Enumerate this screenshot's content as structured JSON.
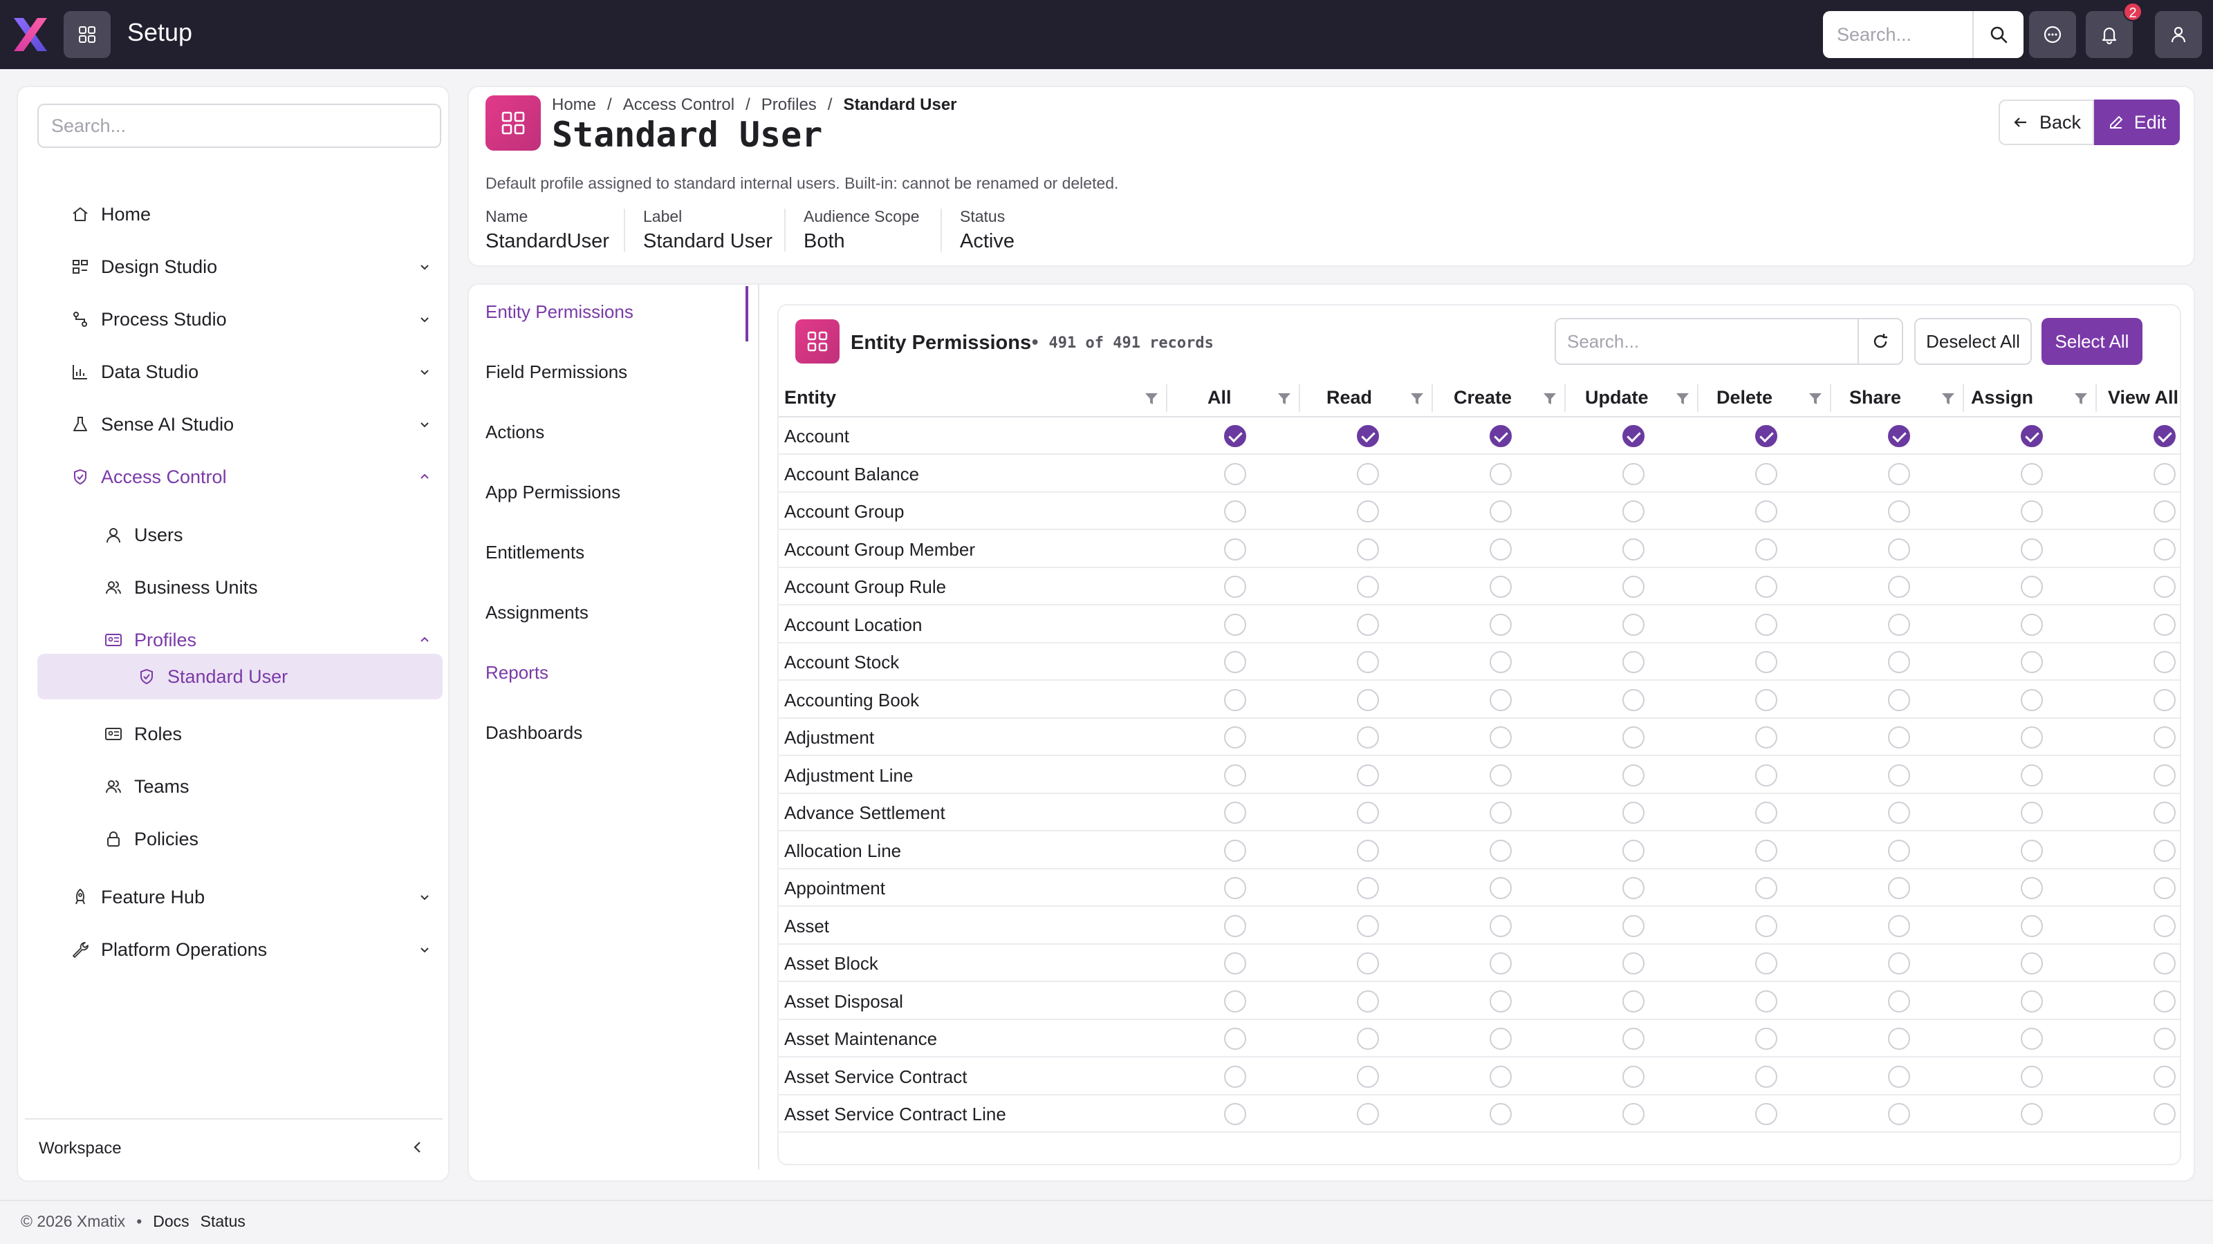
{
  "app": {
    "title": "Setup",
    "search_placeholder": "Search...",
    "notification_count": "2"
  },
  "sidebar": {
    "search_placeholder": "Search...",
    "items": [
      {
        "label": "Home",
        "icon": "home-icon"
      },
      {
        "label": "Design Studio",
        "icon": "design-icon"
      },
      {
        "label": "Process Studio",
        "icon": "process-icon"
      },
      {
        "label": "Data Studio",
        "icon": "chart-icon"
      },
      {
        "label": "Sense AI Studio",
        "icon": "flask-icon"
      },
      {
        "label": "Access Control",
        "icon": "shield-icon"
      },
      {
        "label": "Users",
        "icon": "user-icon"
      },
      {
        "label": "Business Units",
        "icon": "users-icon"
      },
      {
        "label": "Profiles",
        "icon": "id-card-icon"
      },
      {
        "label": "Standard User",
        "icon": "shield-check-icon"
      },
      {
        "label": "Roles",
        "icon": "id-card-icon"
      },
      {
        "label": "Teams",
        "icon": "users-icon"
      },
      {
        "label": "Policies",
        "icon": "lock-icon"
      },
      {
        "label": "Feature Hub",
        "icon": "rocket-icon"
      },
      {
        "label": "Platform Operations",
        "icon": "wrench-icon"
      }
    ],
    "workspace_label": "Workspace"
  },
  "header": {
    "breadcrumb": [
      "Home",
      "Access Control",
      "Profiles",
      "Standard User"
    ],
    "title": "Standard User",
    "back_label": "Back",
    "edit_label": "Edit",
    "description": "Default profile assigned to standard internal users. Built-in: cannot be renamed or deleted.",
    "meta": [
      {
        "label": "Name",
        "value": "StandardUser"
      },
      {
        "label": "Label",
        "value": "Standard User"
      },
      {
        "label": "Audience Scope",
        "value": "Both"
      },
      {
        "label": "Status",
        "value": "Active"
      }
    ]
  },
  "subnav": {
    "items": [
      "Entity Permissions",
      "Field Permissions",
      "Actions",
      "App Permissions",
      "Entitlements",
      "Assignments",
      "Reports",
      "Dashboards"
    ],
    "active": "Entity Permissions"
  },
  "table": {
    "title": "Entity Permissions",
    "count_text": "• 491 of 491 records",
    "search_placeholder": "Search...",
    "deselect_label": "Deselect All",
    "select_label": "Select All",
    "columns": [
      "Entity",
      "All",
      "Read",
      "Create",
      "Update",
      "Delete",
      "Share",
      "Assign",
      "View All"
    ],
    "rows": [
      {
        "entity": "Account",
        "checked": [
          true,
          true,
          true,
          true,
          true,
          true,
          true,
          true
        ]
      },
      {
        "entity": "Account Balance",
        "checked": [
          false,
          false,
          false,
          false,
          false,
          false,
          false,
          false
        ]
      },
      {
        "entity": "Account Group",
        "checked": [
          false,
          false,
          false,
          false,
          false,
          false,
          false,
          false
        ]
      },
      {
        "entity": "Account Group Member",
        "checked": [
          false,
          false,
          false,
          false,
          false,
          false,
          false,
          false
        ]
      },
      {
        "entity": "Account Group Rule",
        "checked": [
          false,
          false,
          false,
          false,
          false,
          false,
          false,
          false
        ]
      },
      {
        "entity": "Account Location",
        "checked": [
          false,
          false,
          false,
          false,
          false,
          false,
          false,
          false
        ]
      },
      {
        "entity": "Account Stock",
        "checked": [
          false,
          false,
          false,
          false,
          false,
          false,
          false,
          false
        ]
      },
      {
        "entity": "Accounting Book",
        "checked": [
          false,
          false,
          false,
          false,
          false,
          false,
          false,
          false
        ]
      },
      {
        "entity": "Adjustment",
        "checked": [
          false,
          false,
          false,
          false,
          false,
          false,
          false,
          false
        ]
      },
      {
        "entity": "Adjustment Line",
        "checked": [
          false,
          false,
          false,
          false,
          false,
          false,
          false,
          false
        ]
      },
      {
        "entity": "Advance Settlement",
        "checked": [
          false,
          false,
          false,
          false,
          false,
          false,
          false,
          false
        ]
      },
      {
        "entity": "Allocation Line",
        "checked": [
          false,
          false,
          false,
          false,
          false,
          false,
          false,
          false
        ]
      },
      {
        "entity": "Appointment",
        "checked": [
          false,
          false,
          false,
          false,
          false,
          false,
          false,
          false
        ]
      },
      {
        "entity": "Asset",
        "checked": [
          false,
          false,
          false,
          false,
          false,
          false,
          false,
          false
        ]
      },
      {
        "entity": "Asset Block",
        "checked": [
          false,
          false,
          false,
          false,
          false,
          false,
          false,
          false
        ]
      },
      {
        "entity": "Asset Disposal",
        "checked": [
          false,
          false,
          false,
          false,
          false,
          false,
          false,
          false
        ]
      },
      {
        "entity": "Asset Maintenance",
        "checked": [
          false,
          false,
          false,
          false,
          false,
          false,
          false,
          false
        ]
      },
      {
        "entity": "Asset Service Contract",
        "checked": [
          false,
          false,
          false,
          false,
          false,
          false,
          false,
          false
        ]
      },
      {
        "entity": "Asset Service Contract Line",
        "checked": [
          false,
          false,
          false,
          false,
          false,
          false,
          false,
          false
        ]
      }
    ]
  },
  "footer": {
    "copyright": "© 2026 Xmatix",
    "bullet": "•",
    "links": [
      "Docs",
      "Status"
    ]
  },
  "colors": {
    "accent": "#7a3aa8",
    "checkbox_on": "#6a3aa0",
    "topbar": "#221f2e",
    "icon_gradient": "#e23a8a"
  }
}
